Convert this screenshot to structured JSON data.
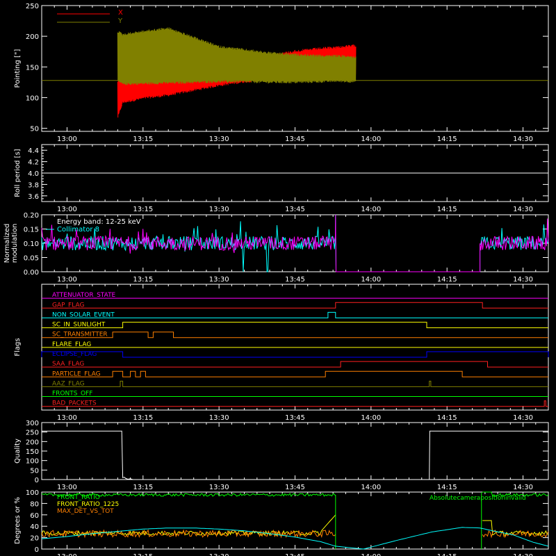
{
  "chart_data": [
    {
      "type": "line",
      "ylabel": "Pointing [\"]",
      "ylim": [
        45,
        250
      ],
      "yticks": [
        "50",
        "100",
        "150",
        "200",
        "250"
      ],
      "xticks": [
        "13:00",
        "13:15",
        "13:30",
        "13:45",
        "14:00",
        "14:15",
        "14:30"
      ],
      "xlim_minutes": [
        775,
        875
      ],
      "legend_position": "top-left",
      "series": [
        {
          "name": "X",
          "color": "#ff0000",
          "envelope": {
            "t": [
              790,
              791,
              795,
              800,
              805,
              810,
              815,
              820,
              825,
              830,
              833,
              837
            ],
            "lo": [
              65,
              90,
              97,
              102,
              110,
              118,
              124,
              128,
              130,
              133,
              134,
              135
            ],
            "hi": [
              128,
              158,
              155,
              150,
              145,
              145,
              155,
              170,
              178,
              182,
              184,
              187
            ]
          }
        },
        {
          "name": "Y",
          "color": "#808000",
          "envelope": {
            "t": [
              790,
              791,
              795,
              800,
              805,
              810,
              815,
              820,
              825,
              830,
              833,
              837
            ],
            "lo": [
              125,
              120,
              121,
              122,
              123,
              124,
              124,
              123,
              123,
              124,
              125,
              124
            ],
            "hi": [
              210,
              205,
              210,
              215,
              200,
              185,
              180,
              175,
              172,
              170,
              170,
              168
            ]
          }
        }
      ],
      "constant_line": {
        "value": 128,
        "color": "#808000"
      }
    },
    {
      "type": "line",
      "ylabel": "Roll period [s]",
      "ylim": [
        3.5,
        4.5
      ],
      "yticks": [
        "3.6",
        "3.8",
        "4.0",
        "4.2",
        "4.4"
      ],
      "xticks": [
        "13:00",
        "13:15",
        "13:30",
        "13:45",
        "14:00",
        "14:15",
        "14:30"
      ],
      "series": [
        {
          "color": "#ffffff",
          "value": 4.0
        }
      ]
    },
    {
      "type": "line",
      "ylabel": "Normalized modulation",
      "ylim": [
        0.0,
        0.2
      ],
      "yticks": [
        "0.00",
        "0.05",
        "0.10",
        "0.15",
        "0.20"
      ],
      "xticks": [
        "13:00",
        "13:15",
        "13:30",
        "13:45",
        "14:00",
        "14:15",
        "14:30"
      ],
      "annotation": "Energy band: 12-25 keV",
      "series": [
        {
          "name": "Collimator 8",
          "color": "#00ffff"
        },
        {
          "color": "#ff00ff"
        }
      ],
      "active_intervals": [
        [
          775,
          814.5
        ],
        [
          819.5,
          833
        ],
        [
          836.5,
          840
        ],
        [
          867.5,
          875
        ]
      ],
      "gap_interval": [
        833,
        861.5
      ],
      "mean_value": 0.1
    },
    {
      "type": "line",
      "ylabel": "Flags",
      "xticks": [
        "13:00",
        "13:15",
        "13:30",
        "13:45",
        "14:00",
        "14:15",
        "14:30"
      ],
      "flags": [
        {
          "name": "ATTENUATOR_STATE",
          "color": "#ff00ff",
          "steps": []
        },
        {
          "name": "GAP_FLAG",
          "color": "#ff2020",
          "steps": [
            [
              833,
              862
            ]
          ]
        },
        {
          "name": "NON_SOLAR_EVENT",
          "color": "#00ffff",
          "steps": [
            [
              831.5,
              833
            ]
          ]
        },
        {
          "name": "SC_IN_SUNLIGHT",
          "color": "#ffff00",
          "steps": [
            [
              791,
              851
            ]
          ]
        },
        {
          "name": "SC_TRANSMITTER",
          "color": "#ff8000",
          "steps": [
            [
              789,
              796
            ],
            [
              797,
              801
            ]
          ]
        },
        {
          "name": "FLARE_FLAG",
          "color": "#ffff00",
          "steps": []
        },
        {
          "name": "ECLIPSE_FLAG",
          "color": "#0000ff",
          "steps": [
            [
              775,
              791
            ],
            [
              851,
              875
            ]
          ]
        },
        {
          "name": "SAA_FLAG",
          "color": "#ff2020",
          "steps": [
            [
              834,
              863
            ]
          ]
        },
        {
          "name": "PARTICLE_FLAG",
          "color": "#ff8000",
          "steps": [
            [
              789,
              791
            ],
            [
              792.5,
              793.5
            ],
            [
              794.5,
              795.5
            ],
            [
              831,
              858
            ]
          ]
        },
        {
          "name": "AAZ_FLAG",
          "color": "#808000",
          "steps": [
            [
              790.5,
              791
            ],
            [
              851.5,
              851.8
            ]
          ]
        },
        {
          "name": "FRONTS_OFF",
          "color": "#00ff00",
          "steps": []
        },
        {
          "name": "BAD_PACKETS",
          "color": "#ff2020",
          "steps": [
            [
              874.2,
              874.5
            ]
          ]
        }
      ]
    },
    {
      "type": "line",
      "ylabel": "Quality",
      "ylim": [
        0,
        300
      ],
      "yticks": [
        "0",
        "50",
        "100",
        "150",
        "200",
        "250",
        "300"
      ],
      "xticks": [
        "13:00",
        "13:15",
        "13:30",
        "13:45",
        "14:00",
        "14:15",
        "14:30"
      ],
      "series": [
        {
          "color": "#ffffff",
          "t": [
            775,
            790.8,
            791,
            791.3,
            791.6,
            792,
            792.5,
            793,
            851.5,
            851.6,
            875
          ],
          "v": [
            255,
            255,
            10,
            12,
            6,
            2,
            4,
            0,
            0,
            255,
            255
          ]
        }
      ]
    },
    {
      "type": "line",
      "ylabel": "Degrees or %",
      "ylim": [
        0,
        100
      ],
      "yticks": [
        "0",
        "20",
        "40",
        "60",
        "80",
        "100"
      ],
      "xticks": [
        "13:00",
        "13:15",
        "13:30",
        "13:45",
        "14:00",
        "14:15",
        "14:30"
      ],
      "series": [
        {
          "name": "FRONT_RATIO",
          "color": "#00ff00",
          "mean": 95
        },
        {
          "name": "FRONT_RATIO_1225",
          "color": "#ffff00",
          "mean": 30
        },
        {
          "name": "MAX_DET_VS_TOT",
          "color": "#ff8000",
          "mean": 27
        },
        {
          "color": "#00ffff",
          "t": [
            775,
            780,
            785,
            790,
            795,
            800,
            805,
            810,
            815,
            820,
            825,
            830,
            833,
            838.5,
            845,
            852,
            858,
            861.5,
            864,
            868,
            872,
            875
          ],
          "v": [
            18,
            22,
            27,
            31,
            35,
            37,
            37,
            35,
            32,
            27,
            21,
            13,
            5,
            0,
            15,
            30,
            38,
            37,
            32,
            25,
            12,
            5
          ]
        }
      ],
      "gap_interval": [
        833,
        862
      ],
      "annotation_right": "Absolutecamerapositioninvalid"
    }
  ]
}
